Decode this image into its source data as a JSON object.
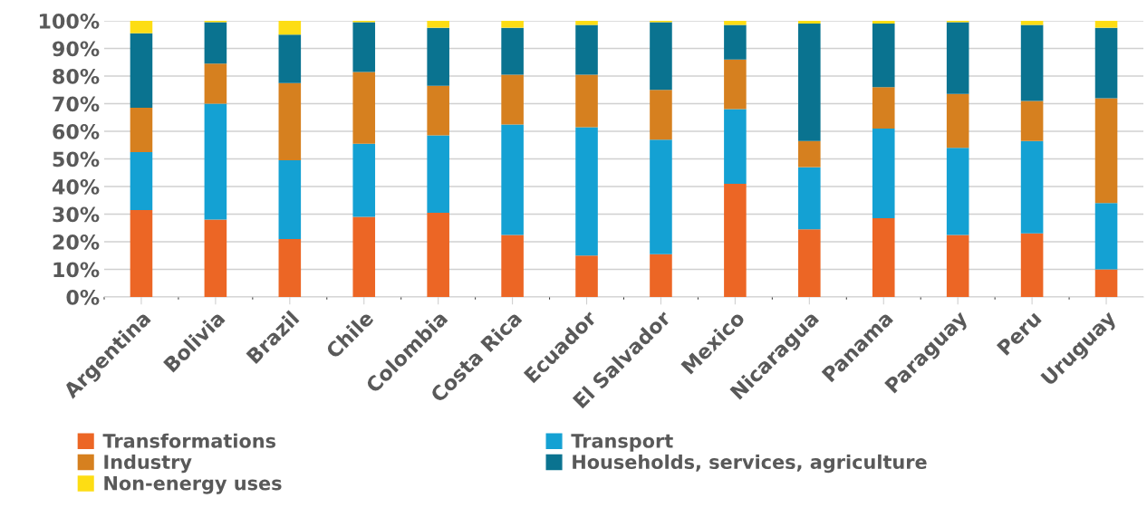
{
  "chart_data": {
    "type": "bar",
    "stacked": true,
    "categories": [
      "Argentina",
      "Bolivia",
      "Brazil",
      "Chile",
      "Colombia",
      "Costa Rica",
      "Ecuador",
      "El Salvador",
      "Mexico",
      "Nicaragua",
      "Panama",
      "Paraguay",
      "Peru",
      "Uruguay"
    ],
    "series": [
      {
        "name": "Transformations",
        "color": "#ec6625",
        "values": [
          31.5,
          28,
          21,
          29,
          30.5,
          22.5,
          15,
          15.5,
          41,
          24.5,
          28.5,
          22.5,
          23,
          10
        ]
      },
      {
        "name": "Transport",
        "color": "#14a1d3",
        "values": [
          21,
          42,
          28.5,
          26.5,
          28,
          40,
          46.5,
          41.5,
          27,
          22.5,
          32.5,
          31.5,
          33.5,
          24
        ]
      },
      {
        "name": "Industry",
        "color": "#d6801f",
        "values": [
          16,
          14.5,
          28,
          26,
          18,
          18,
          19,
          18,
          18,
          9.5,
          15,
          19.5,
          14.5,
          38
        ]
      },
      {
        "name": "Households, services, agriculture",
        "color": "#0a7390",
        "values": [
          27,
          15,
          17.5,
          18,
          21,
          17,
          18,
          24.5,
          12.5,
          42.5,
          23,
          26,
          27.5,
          25.5
        ]
      },
      {
        "name": "Non-energy uses",
        "color": "#fddd14",
        "values": [
          4.5,
          0.5,
          5,
          0.5,
          2.5,
          2.5,
          1.5,
          0.5,
          1.5,
          1,
          1,
          0.5,
          1.5,
          2.5
        ]
      }
    ],
    "ylim": [
      0,
      100
    ],
    "yticks": [
      {
        "value": 0,
        "label": "0%"
      },
      {
        "value": 10,
        "label": "10%"
      },
      {
        "value": 20,
        "label": "20%"
      },
      {
        "value": 30,
        "label": "30%"
      },
      {
        "value": 40,
        "label": "40%"
      },
      {
        "value": 50,
        "label": "50%"
      },
      {
        "value": 60,
        "label": "60%"
      },
      {
        "value": 70,
        "label": "70%"
      },
      {
        "value": 80,
        "label": "80%"
      },
      {
        "value": 90,
        "label": "90%"
      },
      {
        "value": 100,
        "label": "100%"
      }
    ],
    "grid": "y",
    "legend": "bottom"
  }
}
